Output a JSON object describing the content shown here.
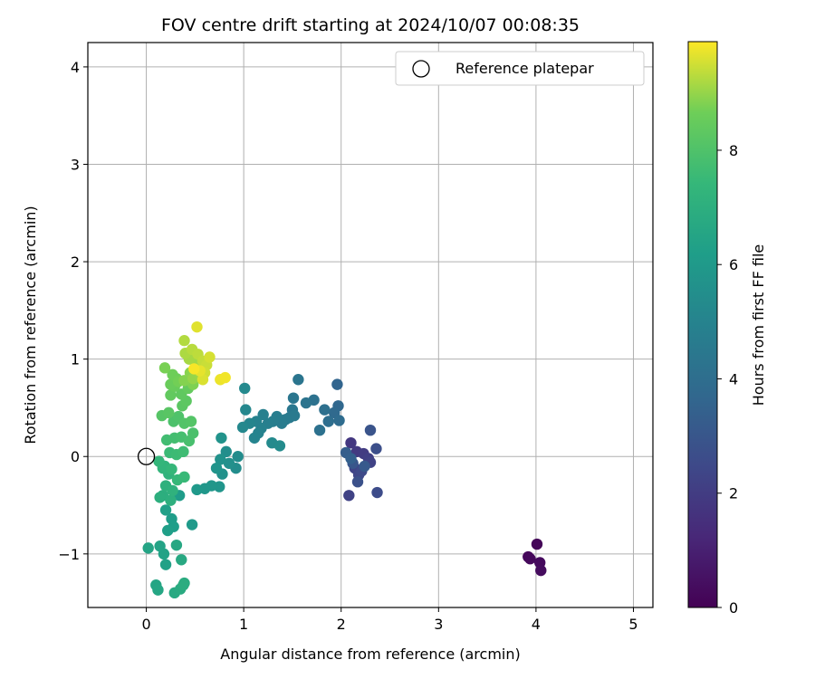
{
  "chart_data": {
    "type": "scatter",
    "title": "FOV centre drift starting at 2024/10/07 00:08:35",
    "xlabel": "Angular distance from reference (arcmin)",
    "ylabel": "Rotation from reference (arcmin)",
    "xlim": [
      -0.6,
      5.2
    ],
    "ylim": [
      -1.55,
      4.25
    ],
    "xticks": [
      0,
      1,
      2,
      3,
      4,
      5
    ],
    "yticks": [
      -1,
      0,
      1,
      2,
      3,
      4
    ],
    "xtick_labels": [
      "0",
      "1",
      "2",
      "3",
      "4",
      "5"
    ],
    "ytick_labels": [
      "−1",
      "0",
      "1",
      "2",
      "3",
      "4"
    ],
    "grid": true,
    "legend": {
      "position": "top-right",
      "entries": [
        {
          "label": "Reference platepar",
          "marker": "open-circle"
        }
      ]
    },
    "reference_point": {
      "x": 0,
      "y": 0
    },
    "colorbar": {
      "label": "Hours from first FF file",
      "colormap": "viridis",
      "range": [
        0,
        9.9
      ],
      "ticks": [
        0,
        2,
        4,
        6,
        8
      ],
      "tick_labels": [
        "0",
        "2",
        "4",
        "6",
        "8"
      ]
    },
    "points": [
      {
        "x": 4.01,
        "y": -0.9,
        "c": 0.15
      },
      {
        "x": 3.92,
        "y": -1.03,
        "c": 0.2
      },
      {
        "x": 3.94,
        "y": -1.05,
        "c": 0.25
      },
      {
        "x": 4.04,
        "y": -1.09,
        "c": 0.3
      },
      {
        "x": 4.05,
        "y": -1.17,
        "c": 0.35
      },
      {
        "x": 2.1,
        "y": 0.14,
        "c": 1.8
      },
      {
        "x": 2.16,
        "y": 0.05,
        "c": 1.9
      },
      {
        "x": 2.23,
        "y": 0.03,
        "c": 2.0
      },
      {
        "x": 2.28,
        "y": -0.02,
        "c": 2.1
      },
      {
        "x": 2.3,
        "y": -0.06,
        "c": 2.2
      },
      {
        "x": 2.14,
        "y": -0.12,
        "c": 2.3
      },
      {
        "x": 2.18,
        "y": -0.19,
        "c": 2.4
      },
      {
        "x": 2.21,
        "y": -0.15,
        "c": 2.5
      },
      {
        "x": 2.08,
        "y": -0.4,
        "c": 2.2
      },
      {
        "x": 2.37,
        "y": -0.37,
        "c": 2.6
      },
      {
        "x": 2.36,
        "y": 0.08,
        "c": 2.7
      },
      {
        "x": 2.3,
        "y": 0.27,
        "c": 2.9
      },
      {
        "x": 2.17,
        "y": -0.26,
        "c": 2.8
      },
      {
        "x": 2.12,
        "y": -0.07,
        "c": 3.0
      },
      {
        "x": 2.24,
        "y": -0.1,
        "c": 3.1
      },
      {
        "x": 2.05,
        "y": 0.04,
        "c": 3.3
      },
      {
        "x": 2.1,
        "y": -0.02,
        "c": 3.4
      },
      {
        "x": 1.96,
        "y": 0.74,
        "c": 3.6
      },
      {
        "x": 1.97,
        "y": 0.52,
        "c": 3.7
      },
      {
        "x": 1.93,
        "y": 0.45,
        "c": 3.8
      },
      {
        "x": 1.98,
        "y": 0.37,
        "c": 3.9
      },
      {
        "x": 1.87,
        "y": 0.36,
        "c": 4.0
      },
      {
        "x": 1.83,
        "y": 0.48,
        "c": 4.1
      },
      {
        "x": 1.78,
        "y": 0.27,
        "c": 4.15
      },
      {
        "x": 1.72,
        "y": 0.58,
        "c": 4.2
      },
      {
        "x": 1.64,
        "y": 0.55,
        "c": 4.3
      },
      {
        "x": 1.56,
        "y": 0.79,
        "c": 4.35
      },
      {
        "x": 1.51,
        "y": 0.6,
        "c": 4.4
      },
      {
        "x": 1.5,
        "y": 0.48,
        "c": 4.45
      },
      {
        "x": 1.47,
        "y": 0.4,
        "c": 4.5
      },
      {
        "x": 1.52,
        "y": 0.42,
        "c": 4.55
      },
      {
        "x": 1.43,
        "y": 0.38,
        "c": 4.6
      },
      {
        "x": 1.39,
        "y": 0.34,
        "c": 4.65
      },
      {
        "x": 1.34,
        "y": 0.41,
        "c": 4.7
      },
      {
        "x": 1.3,
        "y": 0.36,
        "c": 4.75
      },
      {
        "x": 1.25,
        "y": 0.34,
        "c": 4.8
      },
      {
        "x": 1.2,
        "y": 0.43,
        "c": 4.85
      },
      {
        "x": 1.18,
        "y": 0.29,
        "c": 4.9
      },
      {
        "x": 1.13,
        "y": 0.36,
        "c": 4.95
      },
      {
        "x": 1.15,
        "y": 0.24,
        "c": 5.0
      },
      {
        "x": 1.11,
        "y": 0.19,
        "c": 5.05
      },
      {
        "x": 1.06,
        "y": 0.34,
        "c": 5.1
      },
      {
        "x": 1.02,
        "y": 0.48,
        "c": 5.15
      },
      {
        "x": 0.99,
        "y": 0.3,
        "c": 5.2
      },
      {
        "x": 1.01,
        "y": 0.7,
        "c": 5.25
      },
      {
        "x": 1.29,
        "y": 0.14,
        "c": 5.3
      },
      {
        "x": 1.37,
        "y": 0.11,
        "c": 5.35
      },
      {
        "x": 0.94,
        "y": 0.0,
        "c": 5.4
      },
      {
        "x": 0.92,
        "y": -0.12,
        "c": 5.45
      },
      {
        "x": 0.82,
        "y": 0.05,
        "c": 5.5
      },
      {
        "x": 0.85,
        "y": -0.07,
        "c": 5.55
      },
      {
        "x": 0.78,
        "y": -0.18,
        "c": 5.6
      },
      {
        "x": 0.76,
        "y": -0.03,
        "c": 5.65
      },
      {
        "x": 0.77,
        "y": 0.19,
        "c": 5.7
      },
      {
        "x": 0.72,
        "y": -0.12,
        "c": 5.75
      },
      {
        "x": 0.75,
        "y": -0.31,
        "c": 5.8
      },
      {
        "x": 0.67,
        "y": -0.3,
        "c": 5.85
      },
      {
        "x": 0.6,
        "y": -0.33,
        "c": 5.9
      },
      {
        "x": 0.52,
        "y": -0.34,
        "c": 5.95
      },
      {
        "x": 0.47,
        "y": -0.7,
        "c": 6.0
      },
      {
        "x": 0.34,
        "y": -0.4,
        "c": 6.1
      },
      {
        "x": 0.26,
        "y": -0.64,
        "c": 6.15
      },
      {
        "x": 0.28,
        "y": -0.72,
        "c": 6.2
      },
      {
        "x": 0.22,
        "y": -0.76,
        "c": 6.25
      },
      {
        "x": 0.2,
        "y": -0.55,
        "c": 6.3
      },
      {
        "x": 0.2,
        "y": -1.11,
        "c": 6.35
      },
      {
        "x": 0.18,
        "y": -1.0,
        "c": 6.4
      },
      {
        "x": 0.14,
        "y": -0.92,
        "c": 6.45
      },
      {
        "x": 0.02,
        "y": -0.94,
        "c": 6.5
      },
      {
        "x": 0.1,
        "y": -1.32,
        "c": 6.55
      },
      {
        "x": 0.12,
        "y": -1.37,
        "c": 6.6
      },
      {
        "x": 0.31,
        "y": -0.91,
        "c": 6.65
      },
      {
        "x": 0.36,
        "y": -1.06,
        "c": 6.7
      },
      {
        "x": 0.29,
        "y": -1.4,
        "c": 6.75
      },
      {
        "x": 0.35,
        "y": -1.36,
        "c": 6.8
      },
      {
        "x": 0.39,
        "y": -1.3,
        "c": 6.85
      },
      {
        "x": 0.38,
        "y": -1.32,
        "c": 6.9
      },
      {
        "x": 0.17,
        "y": -0.4,
        "c": 6.95
      },
      {
        "x": 0.14,
        "y": -0.42,
        "c": 7.0
      },
      {
        "x": 0.25,
        "y": -0.45,
        "c": 7.05
      },
      {
        "x": 0.2,
        "y": -0.3,
        "c": 7.1
      },
      {
        "x": 0.27,
        "y": -0.35,
        "c": 7.15
      },
      {
        "x": 0.23,
        "y": -0.18,
        "c": 7.2
      },
      {
        "x": 0.19,
        "y": -0.1,
        "c": 7.25
      },
      {
        "x": 0.17,
        "y": -0.12,
        "c": 7.3
      },
      {
        "x": 0.13,
        "y": -0.05,
        "c": 7.35
      },
      {
        "x": 0.26,
        "y": -0.13,
        "c": 7.4
      },
      {
        "x": 0.32,
        "y": -0.24,
        "c": 7.45
      },
      {
        "x": 0.39,
        "y": -0.21,
        "c": 7.5
      },
      {
        "x": 0.24,
        "y": 0.04,
        "c": 7.55
      },
      {
        "x": 0.31,
        "y": 0.02,
        "c": 7.6
      },
      {
        "x": 0.38,
        "y": 0.05,
        "c": 7.65
      },
      {
        "x": 0.21,
        "y": 0.17,
        "c": 7.7
      },
      {
        "x": 0.29,
        "y": 0.19,
        "c": 7.75
      },
      {
        "x": 0.36,
        "y": 0.2,
        "c": 7.8
      },
      {
        "x": 0.44,
        "y": 0.16,
        "c": 7.85
      },
      {
        "x": 0.48,
        "y": 0.24,
        "c": 7.9
      },
      {
        "x": 0.28,
        "y": 0.36,
        "c": 7.95
      },
      {
        "x": 0.33,
        "y": 0.41,
        "c": 8.0
      },
      {
        "x": 0.39,
        "y": 0.34,
        "c": 8.05
      },
      {
        "x": 0.46,
        "y": 0.36,
        "c": 8.1
      },
      {
        "x": 0.16,
        "y": 0.42,
        "c": 8.15
      },
      {
        "x": 0.23,
        "y": 0.45,
        "c": 8.2
      },
      {
        "x": 0.37,
        "y": 0.52,
        "c": 8.25
      },
      {
        "x": 0.41,
        "y": 0.57,
        "c": 8.3
      },
      {
        "x": 0.36,
        "y": 0.64,
        "c": 8.35
      },
      {
        "x": 0.25,
        "y": 0.63,
        "c": 8.4
      },
      {
        "x": 0.43,
        "y": 0.7,
        "c": 8.45
      },
      {
        "x": 0.29,
        "y": 0.72,
        "c": 8.5
      },
      {
        "x": 0.25,
        "y": 0.74,
        "c": 8.55
      },
      {
        "x": 0.31,
        "y": 0.8,
        "c": 8.6
      },
      {
        "x": 0.27,
        "y": 0.84,
        "c": 8.65
      },
      {
        "x": 0.33,
        "y": 0.77,
        "c": 8.7
      },
      {
        "x": 0.19,
        "y": 0.91,
        "c": 8.75
      },
      {
        "x": 0.48,
        "y": 0.74,
        "c": 8.8
      },
      {
        "x": 0.39,
        "y": 0.78,
        "c": 8.85
      },
      {
        "x": 0.45,
        "y": 0.86,
        "c": 8.9
      },
      {
        "x": 0.52,
        "y": 0.92,
        "c": 8.95
      },
      {
        "x": 0.48,
        "y": 0.8,
        "c": 9.0
      },
      {
        "x": 0.56,
        "y": 0.83,
        "c": 9.05
      },
      {
        "x": 0.5,
        "y": 0.97,
        "c": 9.1
      },
      {
        "x": 0.44,
        "y": 1.0,
        "c": 9.15
      },
      {
        "x": 0.4,
        "y": 1.06,
        "c": 9.2
      },
      {
        "x": 0.39,
        "y": 1.19,
        "c": 9.25
      },
      {
        "x": 0.47,
        "y": 1.1,
        "c": 9.3
      },
      {
        "x": 0.53,
        "y": 1.05,
        "c": 9.35
      },
      {
        "x": 0.58,
        "y": 0.98,
        "c": 9.4
      },
      {
        "x": 0.62,
        "y": 0.94,
        "c": 9.45
      },
      {
        "x": 0.6,
        "y": 0.86,
        "c": 9.5
      },
      {
        "x": 0.65,
        "y": 1.02,
        "c": 9.55
      },
      {
        "x": 0.58,
        "y": 0.79,
        "c": 9.6
      },
      {
        "x": 0.52,
        "y": 1.33,
        "c": 9.65
      },
      {
        "x": 0.55,
        "y": 0.88,
        "c": 9.7
      },
      {
        "x": 0.76,
        "y": 0.79,
        "c": 9.75
      },
      {
        "x": 0.81,
        "y": 0.81,
        "c": 9.8
      },
      {
        "x": 0.49,
        "y": 0.9,
        "c": 9.85
      }
    ]
  }
}
